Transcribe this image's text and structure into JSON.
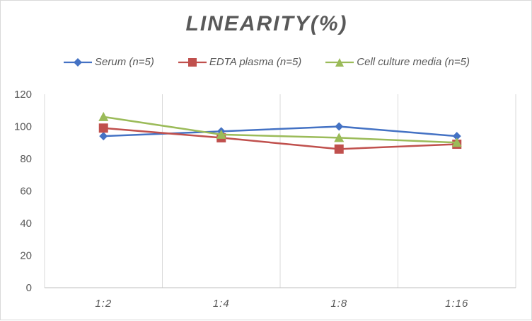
{
  "chart_data": {
    "type": "line",
    "title": "LINEARITY(%)",
    "categories": [
      "1:2",
      "1:4",
      "1:8",
      "1:16"
    ],
    "ylim": [
      0,
      120
    ],
    "yticks": [
      0,
      20,
      40,
      60,
      80,
      100,
      120
    ],
    "grid": "vertical",
    "legend_position": "top",
    "series": [
      {
        "name": "Serum (n=5)",
        "values": [
          94,
          97,
          100,
          94
        ],
        "color": "#4472c4",
        "marker": "diamond"
      },
      {
        "name": "EDTA plasma (n=5)",
        "values": [
          99,
          93,
          86,
          89
        ],
        "color": "#c0504d",
        "marker": "square"
      },
      {
        "name": "Cell culture media (n=5)",
        "values": [
          106,
          95,
          93,
          90
        ],
        "color": "#9bbb59",
        "marker": "triangle"
      }
    ]
  }
}
